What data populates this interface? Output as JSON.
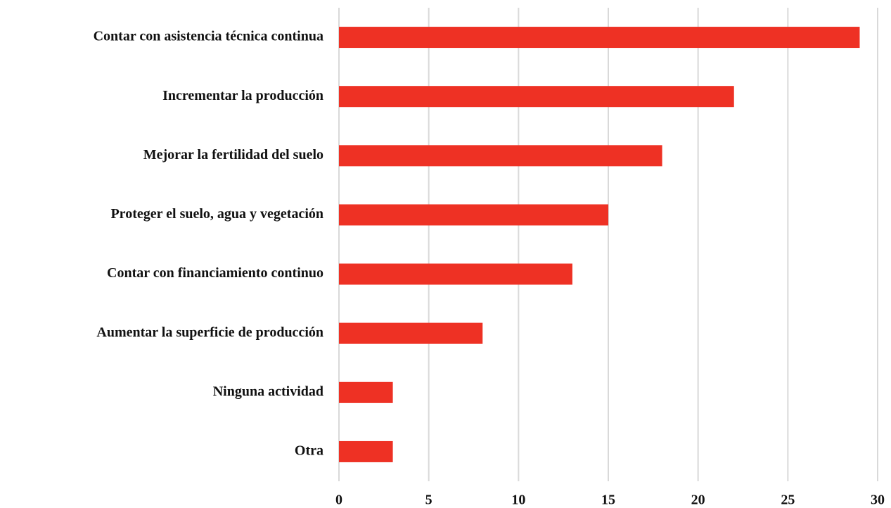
{
  "chart_data": {
    "type": "bar",
    "orientation": "horizontal",
    "categories": [
      "Contar con asistencia técnica continua",
      "Incrementar la producción",
      "Mejorar la fertilidad del suelo",
      "Proteger el suelo, agua y vegetación",
      "Contar con financiamiento continuo",
      "Aumentar la superficie de producción",
      "Ninguna actividad",
      "Otra"
    ],
    "values": [
      29,
      22,
      18,
      15,
      13,
      8,
      3,
      3
    ],
    "color": "#ee3124",
    "xlim": [
      0,
      30
    ],
    "xticks": [
      0,
      5,
      10,
      15,
      20,
      25,
      30
    ],
    "grid": true
  }
}
